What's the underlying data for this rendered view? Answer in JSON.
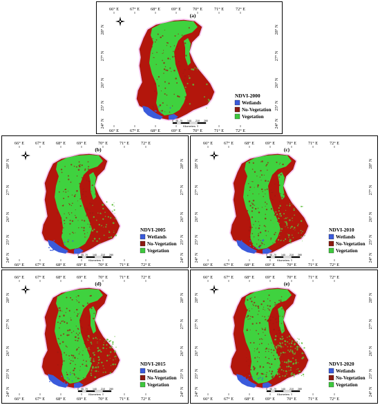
{
  "axes": {
    "longitude_labels": [
      "66° E",
      "67° E",
      "68° E",
      "69° E",
      "70° E",
      "71° E",
      "72° E"
    ],
    "latitude_labels": [
      "28° N",
      "27° N",
      "26° N",
      "25° N",
      "24° N"
    ]
  },
  "legend": {
    "items": [
      {
        "label": "Wetlands",
        "color": "#3b5bdb"
      },
      {
        "label": "No-Vegetation",
        "color": "#8b1a10"
      },
      {
        "label": "Vegetation",
        "color": "#3ec83e"
      }
    ]
  },
  "colors": {
    "no_vegetation": "#b3160c",
    "vegetation": "#3fd23f",
    "wetlands": "#3b5bdb",
    "background_halo": "#f7c6f0"
  },
  "scale_bar": {
    "ticks": [
      "0",
      "35",
      "70",
      "140",
      "210",
      "280"
    ],
    "unit": "Kilometers"
  },
  "panels": [
    {
      "id": "a",
      "letter": "(a)",
      "title": "NDVI-2000"
    },
    {
      "id": "b",
      "letter": "(b)",
      "title": "NDVI-2005"
    },
    {
      "id": "c",
      "letter": "(c)",
      "title": "NDVI-2010"
    },
    {
      "id": "d",
      "letter": "(d)",
      "title": "NDVI-2015"
    },
    {
      "id": "e",
      "letter": "(e)",
      "title": "NDVI-2020"
    }
  ]
}
